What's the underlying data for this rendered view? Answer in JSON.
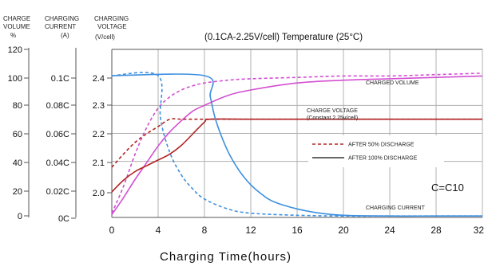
{
  "chart_data": {
    "type": "line",
    "title": "(0.1CA-2.25V/cell) Temperature (25°C)",
    "axis_headers": {
      "volume": [
        "CHARGE",
        "VOLUME",
        "%"
      ],
      "current": [
        "CHARGING",
        "CURRENT",
        "(A)"
      ],
      "voltage": [
        "CHARGING",
        "VOLTAGE",
        "(V/cell)"
      ]
    },
    "xlabel": "Charging Time(hours)",
    "x_ticks": [
      "0",
      "4",
      "8",
      "12",
      "16",
      "20",
      "24",
      "28",
      "32"
    ],
    "xlim": [
      0,
      32
    ],
    "volume_axis": {
      "ticks": [
        "120",
        "100",
        "80",
        "60",
        "40",
        "20",
        "0"
      ],
      "range": [
        0,
        120
      ]
    },
    "current_axis": {
      "ticks": [
        "0.1C",
        "0.08C",
        "0.06C",
        "0.04C",
        "0.02C",
        "0C"
      ]
    },
    "voltage_axis": {
      "ticks": [
        "2.4",
        "2.3",
        "2.2",
        "2.1",
        "2.0"
      ],
      "range": [
        1.9,
        2.4
      ]
    },
    "annotations": {
      "charged_volume": "CHARGED VOLUME",
      "charge_voltage_1": "CHARGE VOLTAGE",
      "charge_voltage_2": "(Constant   2.25v/cell)",
      "charging_current": "CHARGING CURRENT",
      "c_note": "C=C10"
    },
    "legend": [
      {
        "name": "AFTER 50% DISCHARGE",
        "style": "dashed"
      },
      {
        "name": "AFTER 100% DISCHARGE",
        "style": "solid"
      }
    ],
    "colors": {
      "charged_volume": "#d24fd2",
      "charge_voltage": "#b22222",
      "charging_current": "#3c8fe0",
      "grid": "#b0b0b0"
    },
    "series": [
      {
        "quantity": "charged_volume",
        "condition": "after_50_discharge",
        "style": "dashed",
        "x": [
          0,
          1,
          2,
          3,
          4,
          5,
          6,
          7,
          8,
          10,
          12,
          16,
          20,
          24,
          28,
          32
        ],
        "y": [
          3,
          22,
          45,
          64,
          78,
          86,
          91,
          94,
          96,
          98,
          99,
          100,
          101,
          101,
          102,
          103
        ]
      },
      {
        "quantity": "charged_volume",
        "condition": "after_100_discharge",
        "style": "solid",
        "x": [
          0,
          1,
          2,
          3,
          4,
          5,
          6,
          7,
          8,
          10,
          12,
          16,
          20,
          24,
          28,
          32
        ],
        "y": [
          2,
          14,
          27,
          39,
          51,
          61,
          69,
          76,
          80,
          87,
          91,
          96,
          98,
          99,
          100,
          101
        ]
      },
      {
        "quantity": "charge_voltage",
        "condition": "after_50_discharge",
        "style": "dashed",
        "unit": "V/cell",
        "x": [
          0,
          1,
          2,
          3,
          4,
          5,
          6,
          7,
          8,
          12,
          16,
          20,
          24,
          28,
          32
        ],
        "y": [
          2.085,
          2.13,
          2.17,
          2.2,
          2.225,
          2.25,
          2.25,
          2.25,
          2.25,
          2.25,
          2.25,
          2.25,
          2.25,
          2.25,
          2.25
        ]
      },
      {
        "quantity": "charge_voltage",
        "condition": "after_100_discharge",
        "style": "solid",
        "unit": "V/cell",
        "x": [
          0,
          1,
          2,
          3,
          4,
          5,
          6,
          7,
          8,
          8.5,
          12,
          16,
          20,
          24,
          28,
          32
        ],
        "y": [
          2.0,
          2.04,
          2.07,
          2.09,
          2.11,
          2.13,
          2.16,
          2.2,
          2.24,
          2.25,
          2.25,
          2.25,
          2.25,
          2.25,
          2.25,
          2.25
        ]
      },
      {
        "quantity": "charging_current",
        "condition": "after_50_discharge",
        "style": "dashed",
        "unit": "C",
        "x": [
          0,
          4,
          4.2,
          5,
          6,
          7,
          8,
          10,
          12,
          16,
          20,
          24,
          28,
          32
        ],
        "y": [
          0.1,
          0.1,
          0.07,
          0.046,
          0.03,
          0.02,
          0.013,
          0.006,
          0.003,
          0.0015,
          0.001,
          0.001,
          0.001,
          0.001
        ]
      },
      {
        "quantity": "charging_current",
        "condition": "after_100_discharge",
        "style": "solid",
        "unit": "C",
        "x": [
          0,
          8,
          8.5,
          9,
          10,
          11,
          12,
          13,
          14,
          16,
          18,
          20,
          24,
          28,
          32
        ],
        "y": [
          0.1,
          0.1,
          0.085,
          0.068,
          0.047,
          0.033,
          0.023,
          0.016,
          0.011,
          0.006,
          0.003,
          0.0015,
          0.001,
          0.001,
          0.001
        ]
      }
    ]
  }
}
